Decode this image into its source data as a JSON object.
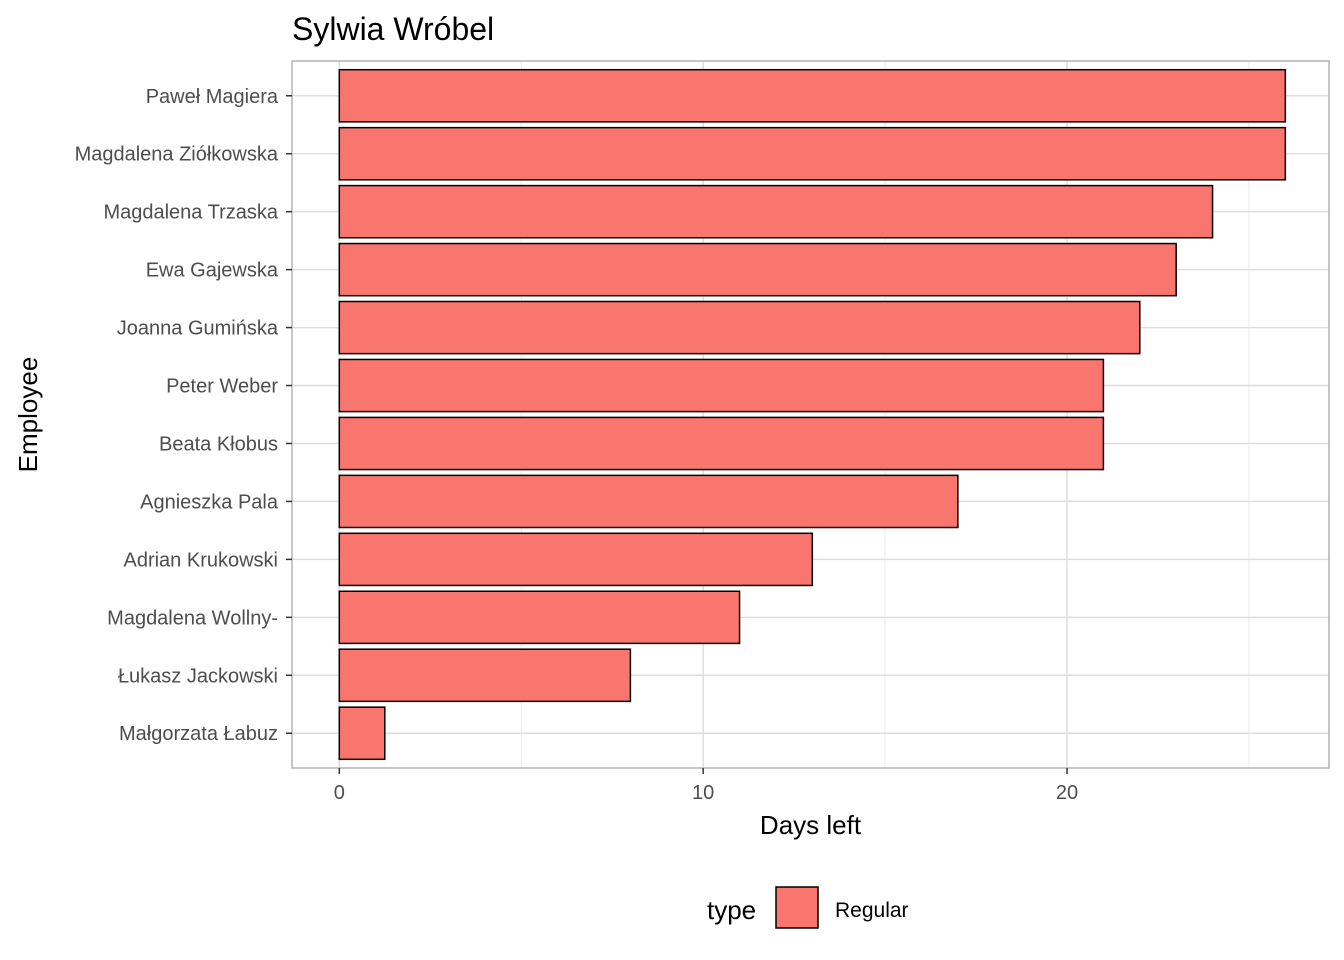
{
  "chart_data": {
    "type": "bar",
    "orientation": "horizontal",
    "title": "Sylwia Wróbel",
    "xlabel": "Days left",
    "ylabel": "Employee",
    "xlim": [
      -1.3,
      27.2
    ],
    "x_ticks": [
      0,
      10,
      20
    ],
    "x_ticks_minor": [
      5,
      15,
      25
    ],
    "grid": true,
    "categories": [
      "Paweł Magiera",
      "Magdalena Ziółkowska",
      "Magdalena Trzaska",
      "Ewa Gajewska",
      "Joanna Gumińska",
      "Peter Weber",
      "Beata Kłobus",
      "Agnieszka Pala",
      "Adrian Krukowski",
      "Magdalena Wollny-",
      "Łukasz Jackowski",
      "Małgorzata Łabuz"
    ],
    "series": [
      {
        "name": "Regular",
        "color": "#F8766D",
        "values": [
          26,
          26,
          24,
          23,
          22,
          21,
          21,
          17,
          13,
          11,
          8,
          1.25
        ]
      }
    ],
    "legend": {
      "title": "type",
      "position": "bottom",
      "entries": [
        "Regular"
      ]
    }
  }
}
